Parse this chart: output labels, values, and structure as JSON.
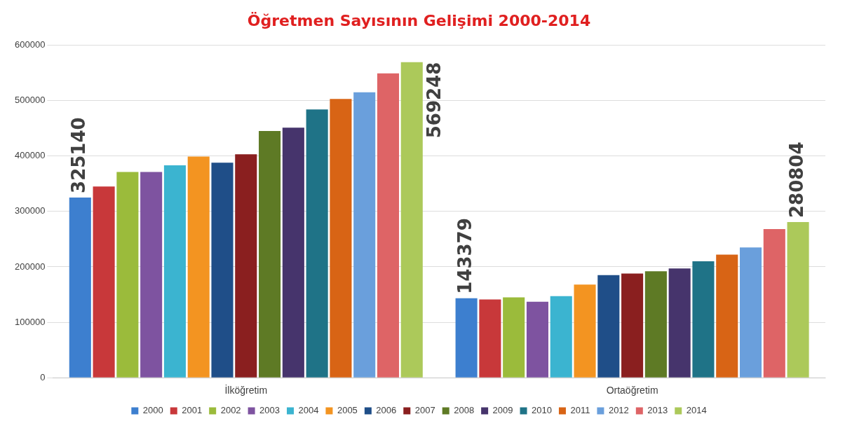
{
  "chart_data": {
    "type": "bar",
    "title": "Öğretmen Sayısının Gelişimi 2000-2014",
    "categories": [
      "İlköğretim",
      "Ortaöğretim"
    ],
    "ylim": [
      0,
      600000
    ],
    "yticks": [
      0,
      100000,
      200000,
      300000,
      400000,
      500000,
      600000
    ],
    "grid": "y",
    "legend": "bottom",
    "series": [
      {
        "name": "2000",
        "color": "#3d7fcf",
        "values": [
          325140,
          143379
        ],
        "value_labels": [
          "325140",
          "143379"
        ]
      },
      {
        "name": "2001",
        "color": "#c8383a",
        "values": [
          345000,
          141000
        ]
      },
      {
        "name": "2002",
        "color": "#9bbb3b",
        "values": [
          371000,
          145000
        ]
      },
      {
        "name": "2003",
        "color": "#7e53a0",
        "values": [
          371000,
          137000
        ]
      },
      {
        "name": "2004",
        "color": "#3bb4d0",
        "values": [
          383000,
          147000
        ]
      },
      {
        "name": "2005",
        "color": "#f39421",
        "values": [
          399000,
          168000
        ]
      },
      {
        "name": "2006",
        "color": "#1f4e88",
        "values": [
          388000,
          185000
        ]
      },
      {
        "name": "2007",
        "color": "#8a1f1f",
        "values": [
          403000,
          188000
        ]
      },
      {
        "name": "2008",
        "color": "#5e7a25",
        "values": [
          445000,
          192000
        ]
      },
      {
        "name": "2009",
        "color": "#46346c",
        "values": [
          451000,
          197000
        ]
      },
      {
        "name": "2010",
        "color": "#1f7387",
        "values": [
          484000,
          210000
        ]
      },
      {
        "name": "2011",
        "color": "#d86415",
        "values": [
          503000,
          222000
        ]
      },
      {
        "name": "2012",
        "color": "#6a9fdc",
        "values": [
          515000,
          235000
        ]
      },
      {
        "name": "2013",
        "color": "#de6466",
        "values": [
          549000,
          268000
        ]
      },
      {
        "name": "2014",
        "color": "#acc95a",
        "values": [
          569248,
          280804
        ],
        "value_labels": [
          "569248",
          "280804"
        ]
      }
    ]
  }
}
